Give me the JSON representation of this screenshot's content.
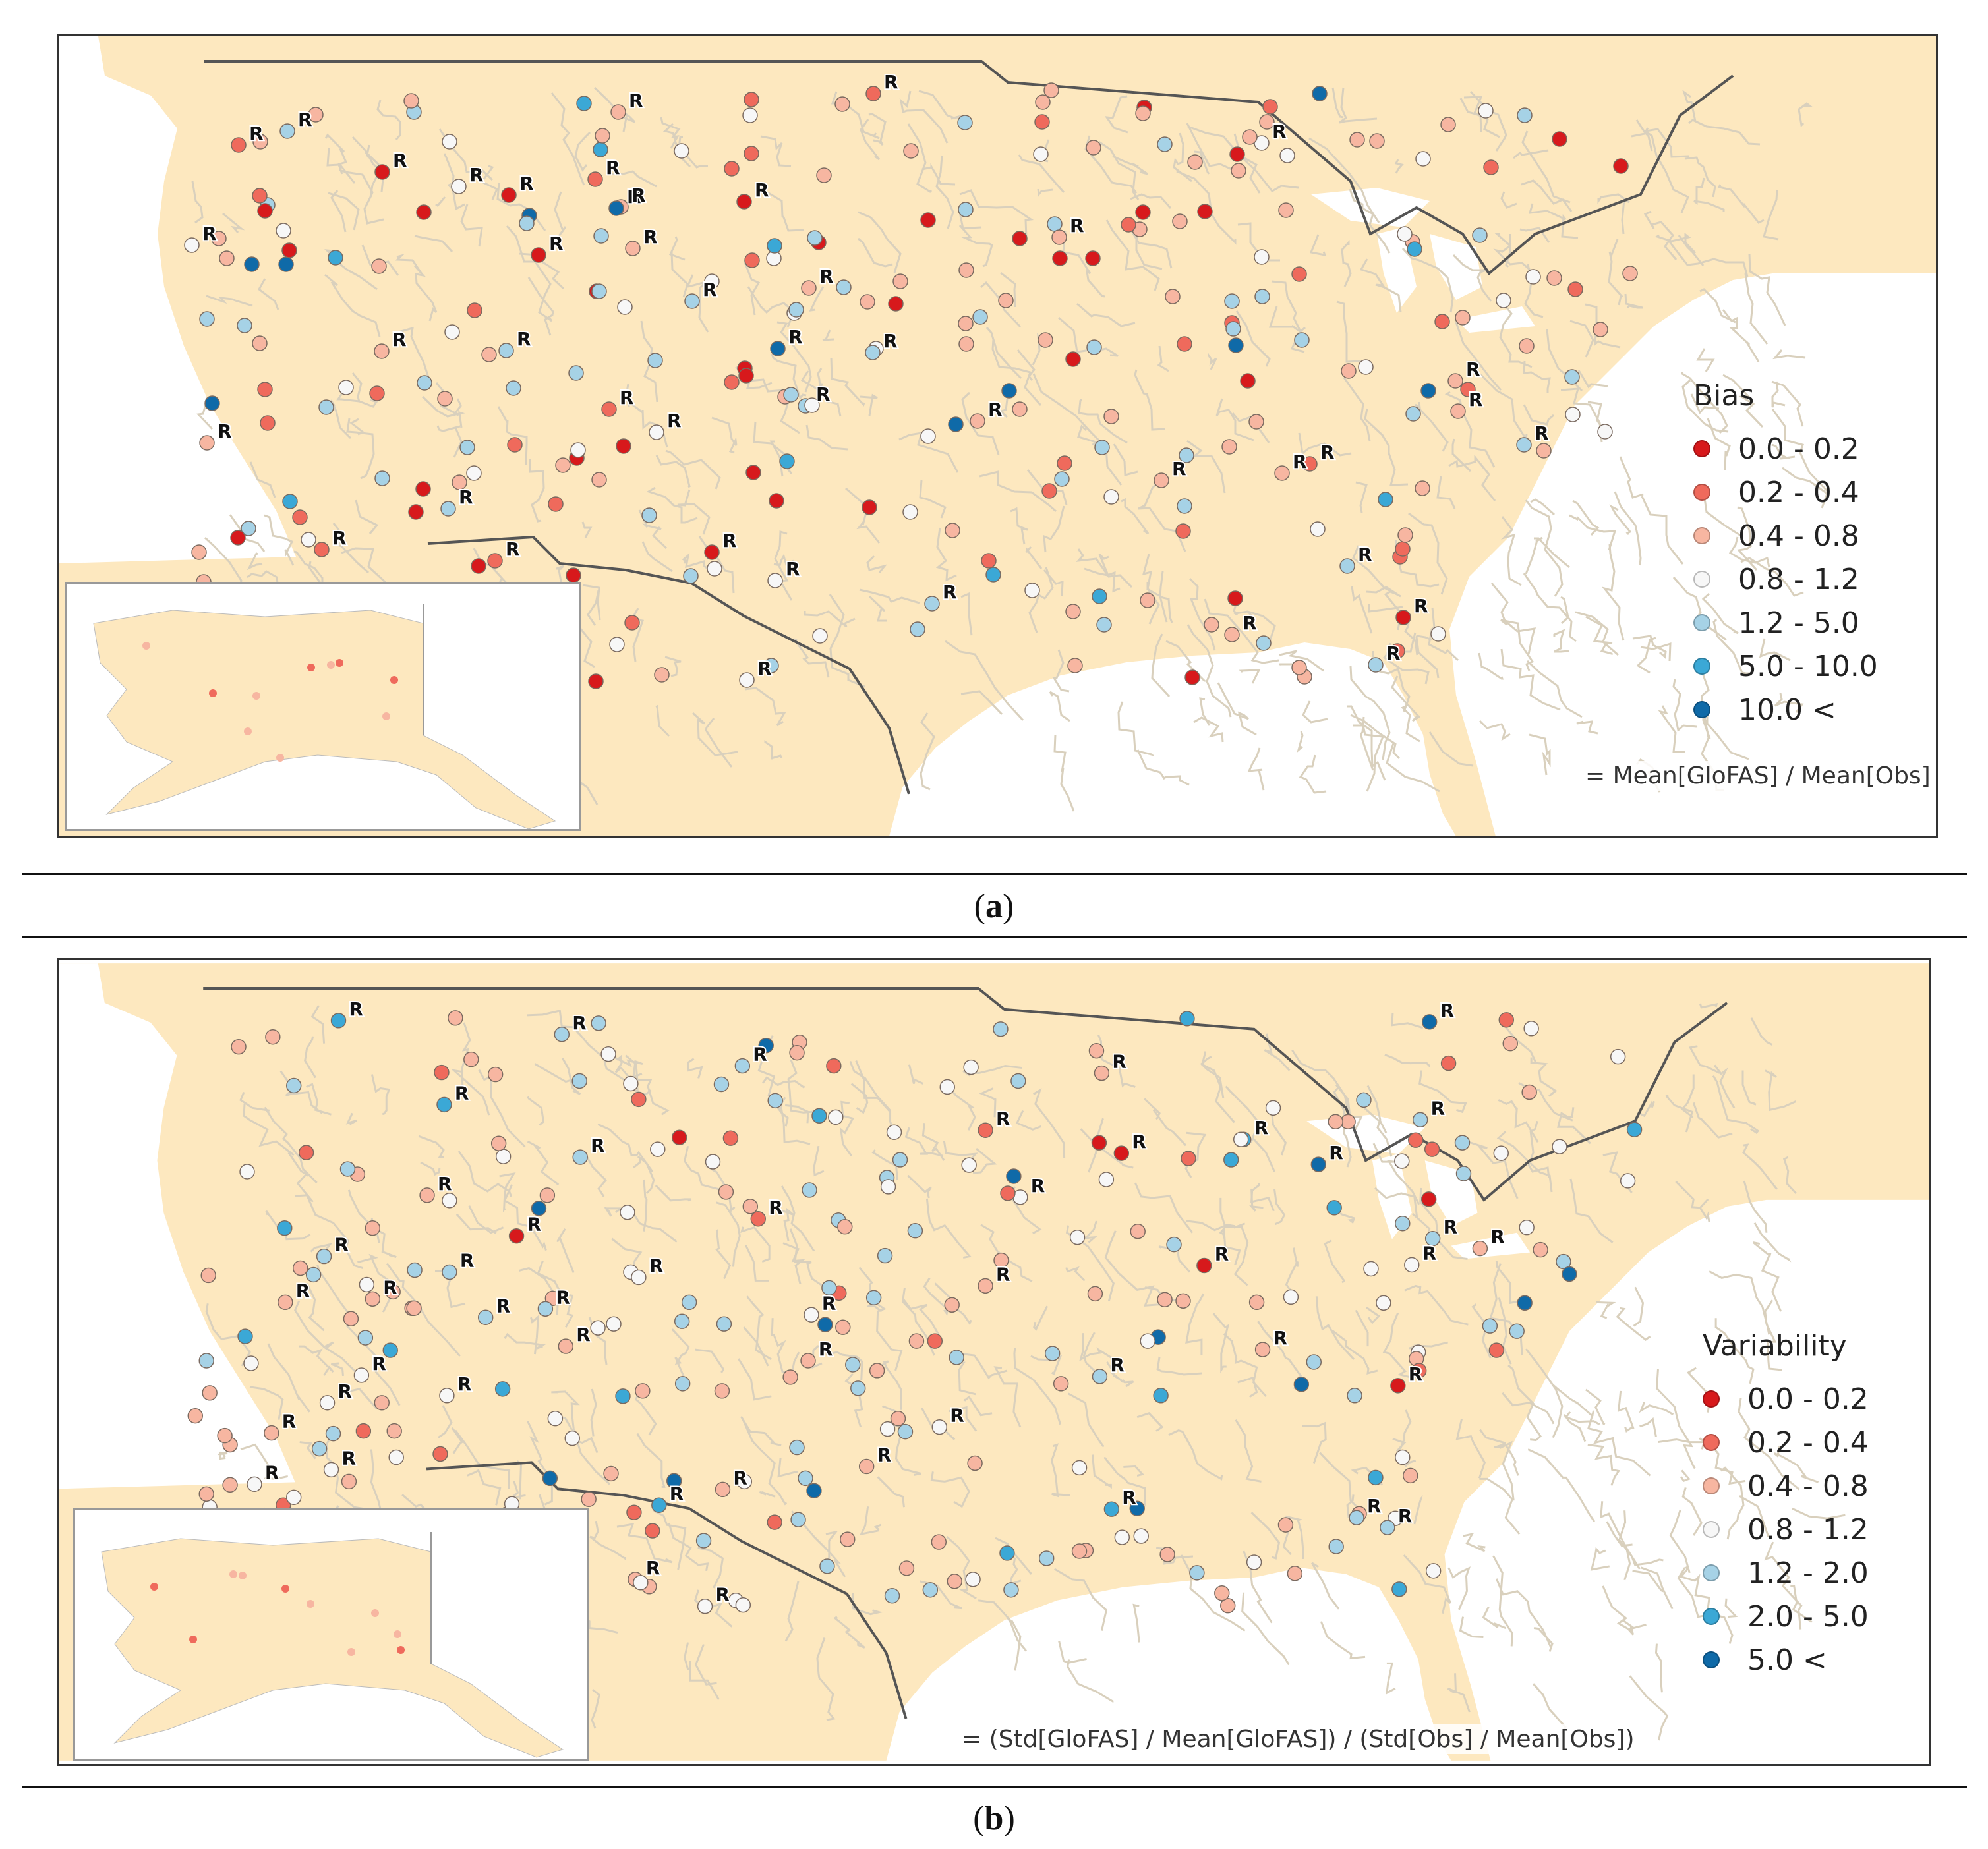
{
  "figure": {
    "panel_a_label": "a",
    "panel_b_label": "b"
  },
  "panel_a": {
    "legend_title": "Bias",
    "classes": [
      {
        "label": "0.0 - 0.2",
        "color": "#d7191c"
      },
      {
        "label": "0.2 - 0.4",
        "color": "#ef6a5c"
      },
      {
        "label": "0.4 - 0.8",
        "color": "#f7b6a1"
      },
      {
        "label": "0.8 - 1.2",
        "color": "#f7f7f7"
      },
      {
        "label": "1.2 - 5.0",
        "color": "#a6d2e6"
      },
      {
        "label": "5.0 - 10.0",
        "color": "#3ba8d6"
      },
      {
        "label": "10.0 <",
        "color": "#0f6aa8"
      }
    ],
    "formula": "= Mean[GloFAS] / Mean[Obs]"
  },
  "panel_b": {
    "legend_title": "Variability",
    "classes": [
      {
        "label": "0.0 - 0.2",
        "color": "#d7191c"
      },
      {
        "label": "0.2 - 0.4",
        "color": "#ef6a5c"
      },
      {
        "label": "0.4 - 0.8",
        "color": "#f7b6a1"
      },
      {
        "label": "0.8 - 1.2",
        "color": "#f7f7f7"
      },
      {
        "label": "1.2 - 2.0",
        "color": "#a6d2e6"
      },
      {
        "label": "2.0 - 5.0",
        "color": "#3ba8d6"
      },
      {
        "label": "5.0 <",
        "color": "#0f6aa8"
      }
    ],
    "formula": "= (Std[GloFAS] / Mean[GloFAS]) / (Std[Obs] / Mean[Obs])"
  },
  "map_style": {
    "land": "#fde8bf",
    "river": "#d9d0bd",
    "border": "#555555",
    "station_marker": "R"
  }
}
